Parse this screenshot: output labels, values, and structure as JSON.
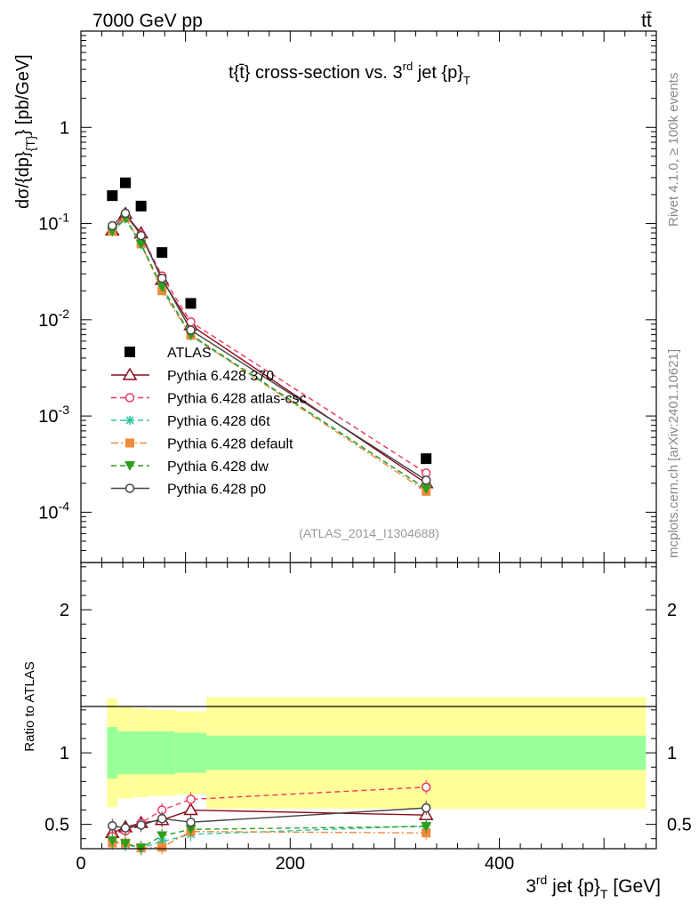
{
  "header": {
    "left": "7000 GeV pp",
    "right": "tt̄"
  },
  "side": {
    "rivet": "Rivet 4.1.0, ≥ 100k events",
    "mcplots": "mcplots.cern.ch [arXiv:2401.10621]"
  },
  "chart_data": {
    "type": "line",
    "title": "t{t̄} cross-section vs. 3rd jet {p}T",
    "title_parts": {
      "main": "t{t̄} cross-section vs. 3",
      "sup": "rd",
      "mid": " jet {p}",
      "sub": "T"
    },
    "ylabel": "dσ/{dp}{T} [pb/GeV]",
    "ylabel_parts": {
      "a": "dσ/{dp}",
      "sub": "{T}",
      "b": "} [pb/GeV]"
    },
    "xlabel": "3rd jet {p}T [GeV]",
    "xlabel_parts": {
      "a": "3",
      "sup": "rd",
      "b": " jet {p}",
      "sub": "T",
      "c": " [GeV]"
    },
    "ratio_ylabel": "Ratio to ATLAS",
    "watermark": "(ATLAS_2014_I1304688)",
    "xlim": [
      0,
      550
    ],
    "ylim": [
      3e-05,
      10
    ],
    "ratio_ylim": [
      0.33,
      2.33
    ],
    "x_ticks": [
      "0",
      "200",
      "400"
    ],
    "y_ticks_main": [
      {
        "base": "10",
        "exp": "-4",
        "value": 0.0001
      },
      {
        "base": "10",
        "exp": "-3",
        "value": 0.001
      },
      {
        "base": "10",
        "exp": "-2",
        "value": 0.01
      },
      {
        "base": "10",
        "exp": "-1",
        "value": 0.1
      },
      {
        "base": "1",
        "exp": "",
        "value": 1
      }
    ],
    "y_ticks_ratio": [
      "0.5",
      "1",
      "2"
    ],
    "legend_position": "left-middle",
    "bins": [
      {
        "lo": 25,
        "hi": 35
      },
      {
        "lo": 35,
        "hi": 50
      },
      {
        "lo": 50,
        "hi": 65
      },
      {
        "lo": 65,
        "hi": 90
      },
      {
        "lo": 90,
        "hi": 120
      },
      {
        "lo": 120,
        "hi": 540
      }
    ],
    "x": [
      30,
      42.5,
      57.5,
      77.5,
      105,
      330
    ],
    "data": {
      "name": "ATLAS",
      "values": [
        0.195,
        0.265,
        0.152,
        0.05,
        0.0148,
        0.00036
      ],
      "band_inner": [
        0.18,
        0.15,
        0.15,
        0.15,
        0.14,
        0.12
      ],
      "band_outer": [
        0.38,
        0.32,
        0.31,
        0.3,
        0.29,
        0.39
      ]
    },
    "series": [
      {
        "name": "Pythia 6.428 370",
        "color": "#8b0a1a",
        "dash": "",
        "marker": "triangle-open",
        "values": [
          0.085,
          0.126,
          0.079,
          0.026,
          0.0088,
          0.0002
        ],
        "ratio": [
          0.44,
          0.48,
          0.51,
          0.53,
          0.6,
          0.565
        ]
      },
      {
        "name": "Pythia 6.428 atlas-csc",
        "color": "#f2365f",
        "dash": "6,4",
        "marker": "circle-open",
        "values": [
          0.088,
          0.122,
          0.077,
          0.0285,
          0.0095,
          0.000255
        ],
        "ratio": [
          0.415,
          0.455,
          0.51,
          0.6,
          0.675,
          0.76
        ]
      },
      {
        "name": "Pythia 6.428 d6t",
        "color": "#2ec6a8",
        "dash": "6,4",
        "marker": "star",
        "values": [
          0.082,
          0.112,
          0.06,
          0.021,
          0.0068,
          0.000175
        ],
        "ratio": [
          0.385,
          0.36,
          0.32,
          0.38,
          0.43,
          0.49
        ]
      },
      {
        "name": "Pythia 6.428 default",
        "color": "#f08a3c",
        "dash": "8,3,2,3",
        "marker": "square",
        "values": [
          0.083,
          0.115,
          0.062,
          0.02,
          0.0069,
          0.000165
        ],
        "ratio": [
          0.37,
          0.37,
          0.335,
          0.34,
          0.45,
          0.44
        ]
      },
      {
        "name": "Pythia 6.428 dw",
        "color": "#2f9e1f",
        "dash": "6,4",
        "marker": "triangle-down",
        "values": [
          0.083,
          0.114,
          0.061,
          0.022,
          0.007,
          0.000175
        ],
        "ratio": [
          0.385,
          0.365,
          0.32,
          0.42,
          0.465,
          0.485
        ]
      },
      {
        "name": "Pythia 6.428 p0",
        "color": "#444444",
        "dash": "",
        "marker": "circle-open",
        "values": [
          0.095,
          0.128,
          0.075,
          0.027,
          0.0078,
          0.000215
        ],
        "ratio": [
          0.49,
          0.475,
          0.495,
          0.54,
          0.515,
          0.615
        ]
      }
    ]
  }
}
